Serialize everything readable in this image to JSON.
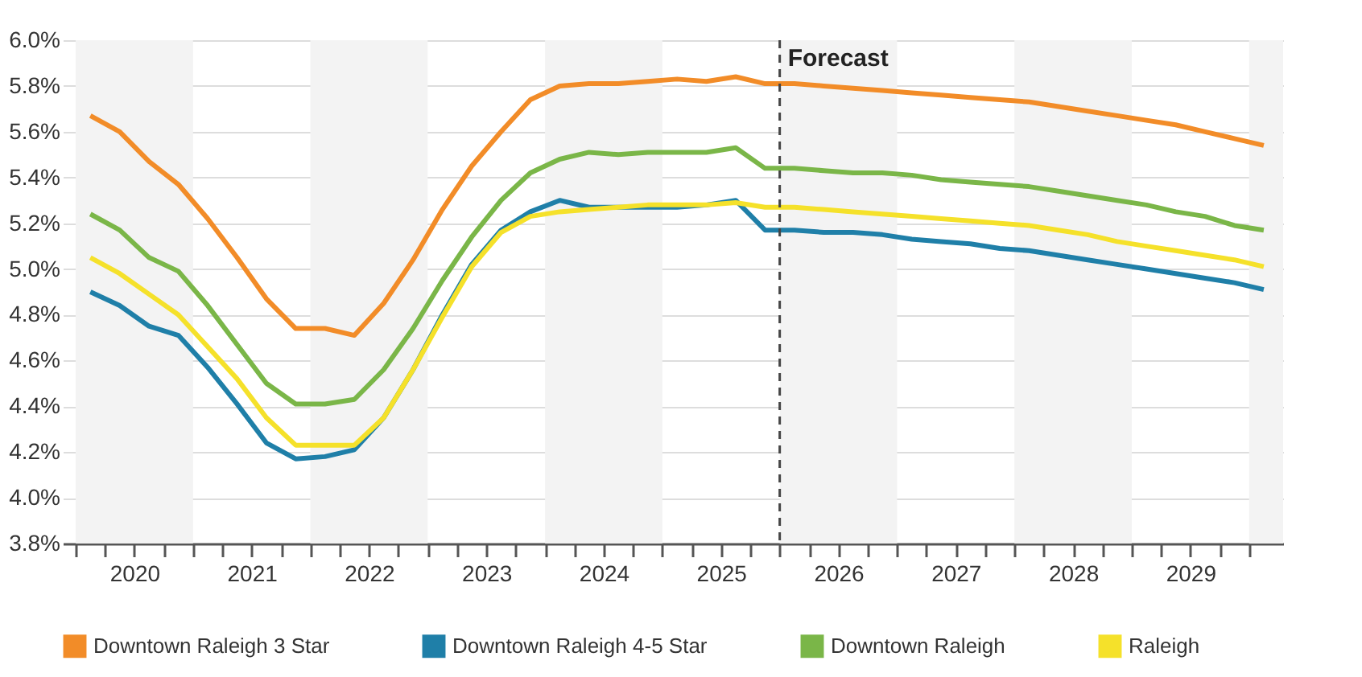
{
  "chart_data": {
    "type": "line",
    "x": [
      2020.125,
      2020.375,
      2020.625,
      2020.875,
      2021.125,
      2021.375,
      2021.625,
      2021.875,
      2022.125,
      2022.375,
      2022.625,
      2022.875,
      2023.125,
      2023.375,
      2023.625,
      2023.875,
      2024.125,
      2024.375,
      2024.625,
      2024.875,
      2025.125,
      2025.375,
      2025.625,
      2025.875,
      2026.125,
      2026.375,
      2026.625,
      2026.875,
      2027.125,
      2027.375,
      2027.625,
      2027.875,
      2028.125,
      2028.375,
      2028.625,
      2028.875,
      2029.125,
      2029.375,
      2029.625,
      2029.875,
      2030.125
    ],
    "series": [
      {
        "name": "Downtown Raleigh 3 Star",
        "color": "#f28c28",
        "values": [
          5.67,
          5.6,
          5.47,
          5.37,
          5.22,
          5.05,
          4.87,
          4.74,
          4.74,
          4.71,
          4.85,
          5.04,
          5.26,
          5.45,
          5.6,
          5.74,
          5.8,
          5.81,
          5.81,
          5.82,
          5.83,
          5.82,
          5.84,
          5.81,
          5.81,
          5.8,
          5.79,
          5.78,
          5.77,
          5.76,
          5.75,
          5.74,
          5.73,
          5.71,
          5.69,
          5.67,
          5.65,
          5.63,
          5.6,
          5.57,
          5.54
        ]
      },
      {
        "name": "Downtown Raleigh 4-5 Star",
        "color": "#1f7fa8",
        "values": [
          4.9,
          4.84,
          4.75,
          4.71,
          4.57,
          4.41,
          4.24,
          4.17,
          4.18,
          4.21,
          4.35,
          4.56,
          4.8,
          5.02,
          5.17,
          5.25,
          5.3,
          5.27,
          5.27,
          5.27,
          5.27,
          5.28,
          5.3,
          5.17,
          5.17,
          5.16,
          5.16,
          5.15,
          5.13,
          5.12,
          5.11,
          5.09,
          5.08,
          5.06,
          5.04,
          5.02,
          5.0,
          4.98,
          4.96,
          4.94,
          4.91
        ]
      },
      {
        "name": "Downtown Raleigh",
        "color": "#7ab648",
        "values": [
          5.24,
          5.17,
          5.05,
          4.99,
          4.84,
          4.67,
          4.5,
          4.41,
          4.41,
          4.43,
          4.56,
          4.74,
          4.95,
          5.14,
          5.3,
          5.42,
          5.48,
          5.51,
          5.5,
          5.51,
          5.51,
          5.51,
          5.53,
          5.44,
          5.44,
          5.43,
          5.42,
          5.42,
          5.41,
          5.39,
          5.38,
          5.37,
          5.36,
          5.34,
          5.32,
          5.3,
          5.28,
          5.25,
          5.23,
          5.19,
          5.17
        ]
      },
      {
        "name": "Raleigh",
        "color": "#f5e12a",
        "values": [
          5.05,
          4.98,
          4.89,
          4.8,
          4.66,
          4.52,
          4.35,
          4.23,
          4.23,
          4.23,
          4.35,
          4.56,
          4.79,
          5.01,
          5.16,
          5.23,
          5.25,
          5.26,
          5.27,
          5.28,
          5.28,
          5.28,
          5.29,
          5.27,
          5.27,
          5.26,
          5.25,
          5.24,
          5.23,
          5.22,
          5.21,
          5.2,
          5.19,
          5.17,
          5.15,
          5.12,
          5.1,
          5.08,
          5.06,
          5.04,
          5.01
        ]
      }
    ],
    "xlim": [
      2019.89,
      2030.29
    ],
    "xticks": [
      {
        "value": 2020,
        "label": null
      },
      {
        "value": 2020.25,
        "label": null
      },
      {
        "value": 2020.5,
        "label": "2020"
      },
      {
        "value": 2020.75,
        "label": null
      },
      {
        "value": 2021,
        "label": null
      },
      {
        "value": 2021.25,
        "label": null
      },
      {
        "value": 2021.5,
        "label": "2021"
      },
      {
        "value": 2021.75,
        "label": null
      },
      {
        "value": 2022,
        "label": null
      },
      {
        "value": 2022.25,
        "label": null
      },
      {
        "value": 2022.5,
        "label": "2022"
      },
      {
        "value": 2022.75,
        "label": null
      },
      {
        "value": 2023,
        "label": null
      },
      {
        "value": 2023.25,
        "label": null
      },
      {
        "value": 2023.5,
        "label": "2023"
      },
      {
        "value": 2023.75,
        "label": null
      },
      {
        "value": 2024,
        "label": null
      },
      {
        "value": 2024.25,
        "label": null
      },
      {
        "value": 2024.5,
        "label": "2024"
      },
      {
        "value": 2024.75,
        "label": null
      },
      {
        "value": 2025,
        "label": null
      },
      {
        "value": 2025.25,
        "label": null
      },
      {
        "value": 2025.5,
        "label": "2025"
      },
      {
        "value": 2025.75,
        "label": null
      },
      {
        "value": 2026,
        "label": null
      },
      {
        "value": 2026.25,
        "label": null
      },
      {
        "value": 2026.5,
        "label": "2026"
      },
      {
        "value": 2026.75,
        "label": null
      },
      {
        "value": 2027,
        "label": null
      },
      {
        "value": 2027.25,
        "label": null
      },
      {
        "value": 2027.5,
        "label": "2027"
      },
      {
        "value": 2027.75,
        "label": null
      },
      {
        "value": 2028,
        "label": null
      },
      {
        "value": 2028.25,
        "label": null
      },
      {
        "value": 2028.5,
        "label": "2028"
      },
      {
        "value": 2028.75,
        "label": null
      },
      {
        "value": 2029,
        "label": null
      },
      {
        "value": 2029.25,
        "label": null
      },
      {
        "value": 2029.5,
        "label": "2029"
      },
      {
        "value": 2029.75,
        "label": null
      },
      {
        "value": 2030,
        "label": null
      }
    ],
    "ylim": [
      3.8,
      6.0
    ],
    "yticks": [
      {
        "value": 3.8,
        "label": "3.8%"
      },
      {
        "value": 4.0,
        "label": "4.0%"
      },
      {
        "value": 4.2,
        "label": "4.2%"
      },
      {
        "value": 4.4,
        "label": "4.4%"
      },
      {
        "value": 4.6,
        "label": "4.6%"
      },
      {
        "value": 4.8,
        "label": "4.8%"
      },
      {
        "value": 5.0,
        "label": "5.0%"
      },
      {
        "value": 5.2,
        "label": "5.2%"
      },
      {
        "value": 5.4,
        "label": "5.4%"
      },
      {
        "value": 5.6,
        "label": "5.6%"
      },
      {
        "value": 5.8,
        "label": "5.8%"
      },
      {
        "value": 6.0,
        "label": "6.0%"
      }
    ],
    "grid": "y",
    "legend": "bottom",
    "marker": "none",
    "line_style": "solid",
    "ref_lines": [
      {
        "axis": "x",
        "value": 2026,
        "label": "Forecast",
        "color": "#444444",
        "line_style": "dashed"
      }
    ],
    "bands": [
      {
        "axis": "x",
        "from": 2020,
        "to": 2021,
        "label": null,
        "color": "#f3f3f3"
      },
      {
        "axis": "x",
        "from": 2022,
        "to": 2023,
        "label": null,
        "color": "#f3f3f3"
      },
      {
        "axis": "x",
        "from": 2024,
        "to": 2025,
        "label": null,
        "color": "#f3f3f3"
      },
      {
        "axis": "x",
        "from": 2026,
        "to": 2027,
        "label": null,
        "color": "#f3f3f3"
      },
      {
        "axis": "x",
        "from": 2028,
        "to": 2029,
        "label": null,
        "color": "#f3f3f3"
      },
      {
        "axis": "x",
        "from": 2030,
        "to": 2030.29,
        "label": null,
        "color": "#f3f3f3"
      }
    ]
  }
}
